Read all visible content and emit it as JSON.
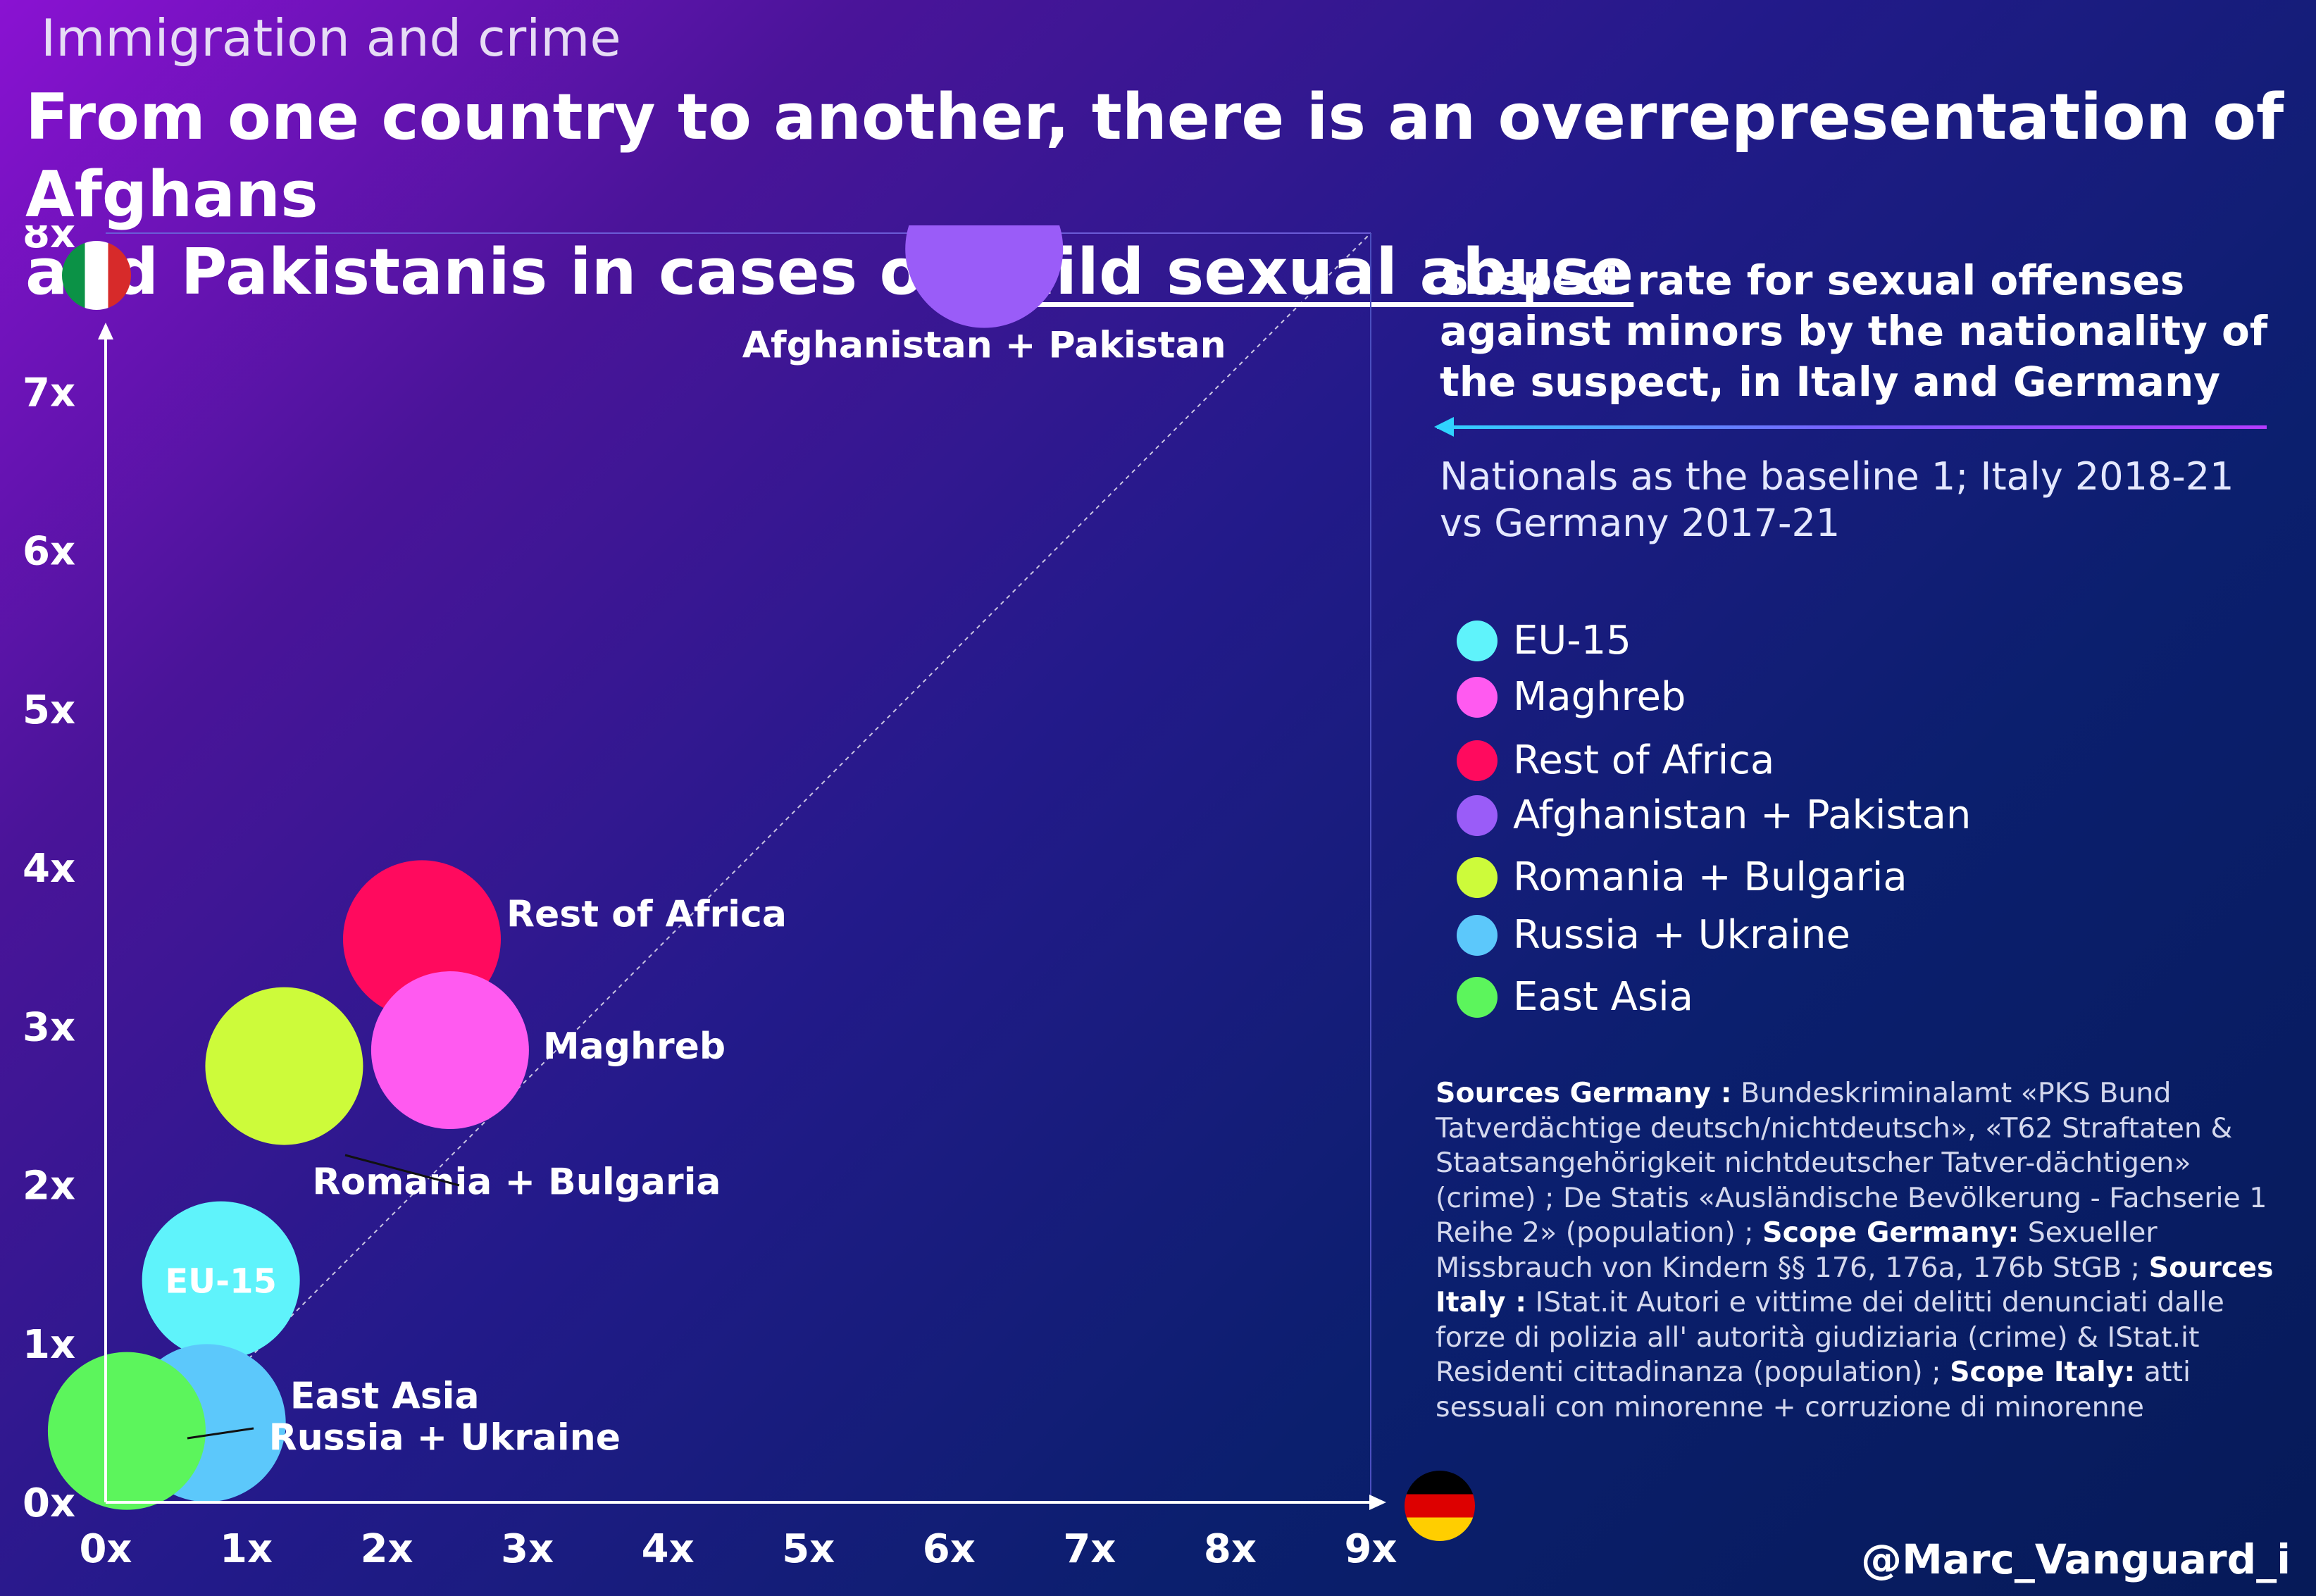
{
  "header": {
    "kicker": "Immigration and crime",
    "headline_line1": "From one country to another, there is an overrepresentation of Afghans",
    "headline_line2_prefix": "and Pakistanis in cases of ",
    "headline_underlined": "child sexual abuse"
  },
  "panel": {
    "title": "Suspect rate for sexual offenses against minors by the nationality of the suspect, in Italy and Germany",
    "subtitle": "Nationals as the baseline 1; Italy 2018-21 vs Germany 2017-21"
  },
  "legend": [
    {
      "label": "EU-15",
      "color": "#5ff3fb"
    },
    {
      "label": "Maghreb",
      "color": "#ff5af0"
    },
    {
      "label": "Rest of Africa",
      "color": "#ff0a5e"
    },
    {
      "label": "Afghanistan + Pakistan",
      "color": "#9a5cf8"
    },
    {
      "label": "Romania + Bulgaria",
      "color": "#cdfb3a"
    },
    {
      "label": "Russia + Ukraine",
      "color": "#5cc8fb"
    },
    {
      "label": "East Asia",
      "color": "#5cf55c"
    }
  ],
  "sources": {
    "germany_label": "Sources Germany :",
    "germany_text": "Bundeskriminalamt «PKS Bund Tatverdächtige deutsch/nichtdeutsch», «T62 Straftaten & Staatsangehörigkeit nichtdeutscher Tatver-dächtigen» (crime) ; De Statis «Ausländische Bevölkerung - Fachserie 1 Reihe 2» (population) ;",
    "scope_germany_label": "Scope Germany:",
    "scope_germany_text": "Sexueller Missbrauch von Kindern §§ 176, 176a, 176b StGB ;",
    "italy_label": "Sources Italy :",
    "italy_text": "IStat.it Autori e vittime dei delitti denunciati dalle forze di polizia all' autorità giudiziaria (crime) & IStat.it Residenti cittadinanza (population) ;",
    "scope_italy_label": "Scope Italy:",
    "scope_italy_text": "atti sessuali con minorenne + corruzione di minorenne"
  },
  "handle": "@Marc_Vanguard_i",
  "flags": {
    "y_axis": "italy-flag",
    "x_axis": "germany-flag"
  },
  "chart_data": {
    "type": "scatter",
    "x_axis": "Germany",
    "y_axis": "Italy",
    "xlim": [
      0,
      9
    ],
    "ylim": [
      0,
      8
    ],
    "x_ticks": [
      "0x",
      "1x",
      "2x",
      "3x",
      "4x",
      "5x",
      "6x",
      "7x",
      "8x",
      "9x"
    ],
    "y_ticks": [
      "0x",
      "1x",
      "2x",
      "3x",
      "4x",
      "5x",
      "6x",
      "7x",
      "8x"
    ],
    "reference_line": "y = x (dashed)",
    "points": [
      {
        "name": "Afghanistan + Pakistan",
        "x": 6.25,
        "y": 7.9,
        "label": "Afghanistan + Pakistan",
        "color": "#9a5cf8"
      },
      {
        "name": "Rest of Africa",
        "x": 2.25,
        "y": 3.55,
        "label": "Rest of Africa",
        "color": "#ff0a5e"
      },
      {
        "name": "Maghreb",
        "x": 2.45,
        "y": 2.85,
        "label": "Maghreb",
        "color": "#ff5af0"
      },
      {
        "name": "Romania + Bulgaria",
        "x": 1.27,
        "y": 2.75,
        "label": "Romania + Bulgaria",
        "color": "#cdfb3a"
      },
      {
        "name": "EU-15",
        "x": 0.82,
        "y": 1.4,
        "label": "EU-15",
        "color": "#5ff3fb"
      },
      {
        "name": "Russia + Ukraine",
        "x": 0.72,
        "y": 0.5,
        "label": "Russia + Ukraine",
        "color": "#5cc8fb"
      },
      {
        "name": "East Asia",
        "x": 0.15,
        "y": 0.45,
        "label": "East Asia",
        "color": "#5cf55c"
      }
    ]
  }
}
